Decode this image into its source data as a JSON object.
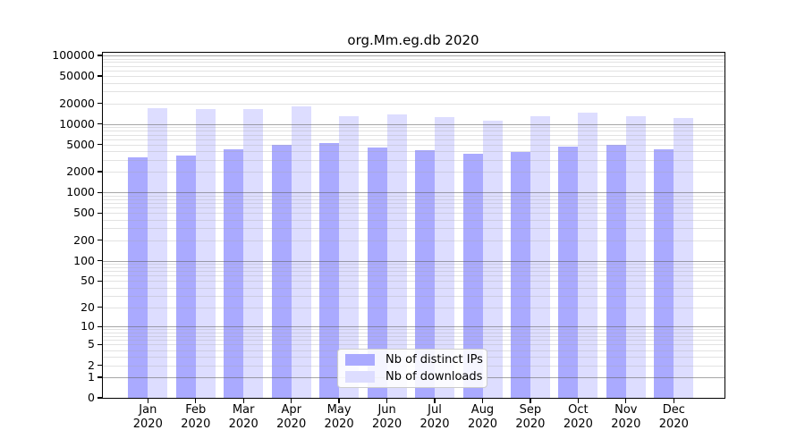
{
  "title": "org.Mm.eg.db 2020",
  "chart_data": {
    "type": "bar",
    "title": "org.Mm.eg.db 2020",
    "scale": "pseudo-log (log10(1+y))",
    "grid": true,
    "categories": [
      "Jan",
      "Feb",
      "Mar",
      "Apr",
      "May",
      "Jun",
      "Jul",
      "Aug",
      "Sep",
      "Oct",
      "Nov",
      "Dec"
    ],
    "x_year_line": "2020",
    "series": [
      {
        "name": "Nb of distinct IPs",
        "color": "#aaaaff",
        "values": [
          3300,
          3450,
          4250,
          4900,
          5200,
          4500,
          4200,
          3650,
          3850,
          4600,
          4900,
          4300
        ]
      },
      {
        "name": "Nb of downloads",
        "color": "#ddddff",
        "values": [
          17000,
          16500,
          16700,
          18200,
          13100,
          13800,
          12400,
          11200,
          13100,
          14700,
          12900,
          12200
        ]
      }
    ],
    "y_ticks": [
      0,
      1,
      2,
      5,
      10,
      20,
      50,
      100,
      200,
      500,
      1000,
      2000,
      5000,
      10000,
      20000,
      50000,
      100000
    ],
    "ylim": [
      0,
      110000
    ],
    "xlabel": "",
    "ylabel": "",
    "legend_position": "inside-bottom-center",
    "colors": {
      "distinct_ips": "#aaaaff",
      "downloads": "#ddddff",
      "major_gridline": "#9b9b9b",
      "minor_gridline": "#e2e2e2",
      "axis": "#000000",
      "background": "#ffffff"
    }
  }
}
